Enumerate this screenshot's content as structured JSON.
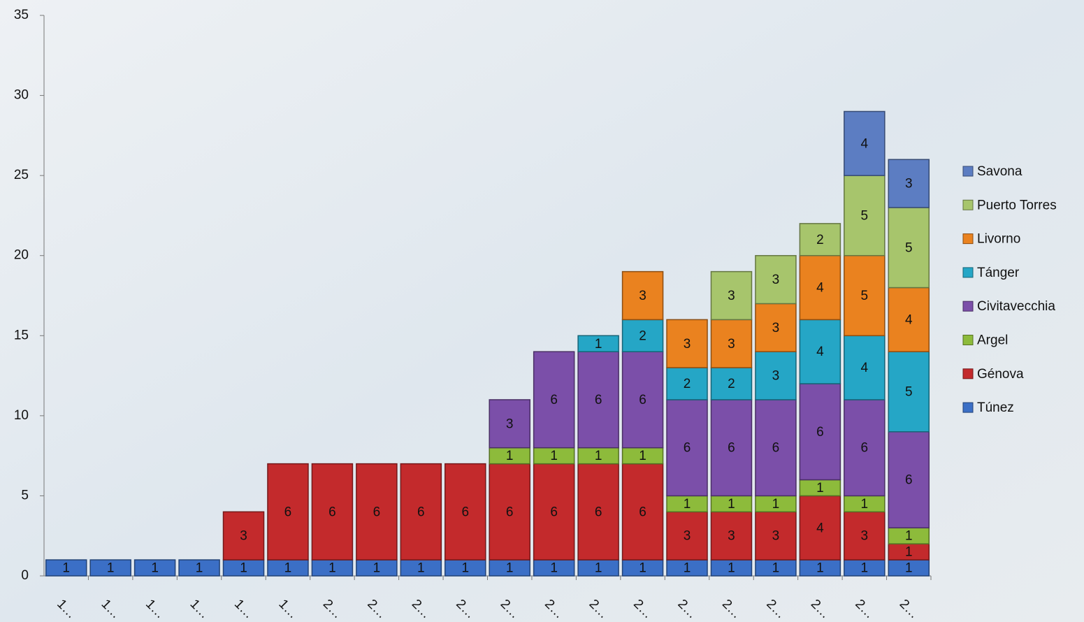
{
  "chart_data": {
    "type": "stacked_bar",
    "categories": [
      "1…",
      "1…",
      "1…",
      "1…",
      "1…",
      "1…",
      "2…",
      "2…",
      "2…",
      "2…",
      "2…",
      "2…",
      "2…",
      "2…",
      "2…",
      "2…",
      "2…",
      "2…",
      "2…",
      "2…"
    ],
    "series": [
      {
        "name": "Túnez",
        "color": "#3b6fc6",
        "values": [
          1,
          1,
          1,
          1,
          1,
          1,
          1,
          1,
          1,
          1,
          1,
          1,
          1,
          1,
          1,
          1,
          1,
          1,
          1,
          1
        ]
      },
      {
        "name": "Génova",
        "color": "#c32a2c",
        "values": [
          null,
          null,
          null,
          null,
          3,
          6,
          6,
          6,
          6,
          6,
          6,
          6,
          6,
          6,
          3,
          3,
          3,
          4,
          3,
          1
        ]
      },
      {
        "name": "Argel",
        "color": "#8dbb3b",
        "values": [
          null,
          null,
          null,
          null,
          null,
          null,
          null,
          null,
          null,
          null,
          1,
          1,
          1,
          1,
          1,
          1,
          1,
          1,
          1,
          1
        ]
      },
      {
        "name": "Civitavecchia",
        "color": "#7b4fa9",
        "values": [
          null,
          null,
          null,
          null,
          null,
          null,
          null,
          null,
          null,
          null,
          3,
          6,
          6,
          6,
          6,
          6,
          6,
          6,
          6,
          6
        ]
      },
      {
        "name": "Tánger",
        "color": "#25a6c6",
        "values": [
          null,
          null,
          null,
          null,
          null,
          null,
          null,
          null,
          null,
          null,
          null,
          null,
          1,
          2,
          2,
          2,
          3,
          4,
          4,
          5
        ]
      },
      {
        "name": "Livorno",
        "color": "#ea821f",
        "values": [
          null,
          null,
          null,
          null,
          null,
          null,
          null,
          null,
          null,
          null,
          null,
          null,
          null,
          3,
          3,
          3,
          3,
          4,
          5,
          4
        ]
      },
      {
        "name": "Puerto Torres",
        "color": "#a7c56c",
        "values": [
          null,
          null,
          null,
          null,
          null,
          null,
          null,
          null,
          null,
          null,
          null,
          null,
          null,
          null,
          null,
          3,
          3,
          2,
          5,
          5
        ]
      },
      {
        "name": "Savona",
        "color": "#5c7dc2",
        "values": [
          null,
          null,
          null,
          null,
          null,
          null,
          null,
          null,
          null,
          null,
          null,
          null,
          null,
          null,
          null,
          null,
          null,
          null,
          4,
          3
        ]
      }
    ],
    "ylim": [
      0,
      35
    ],
    "yticks": [
      0,
      5,
      10,
      15,
      20,
      25,
      30,
      35
    ],
    "legend": "right"
  }
}
